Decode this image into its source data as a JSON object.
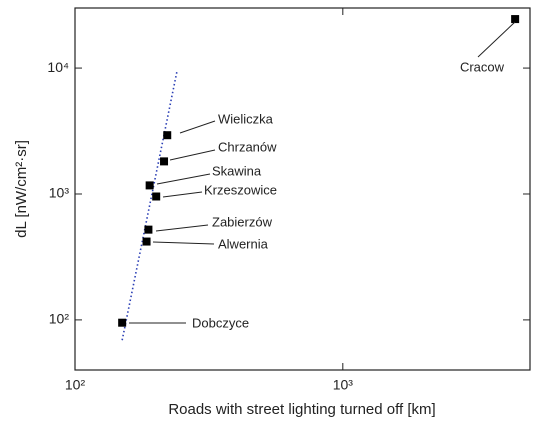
{
  "chart_data": {
    "type": "scatter",
    "x_label": "Roads with street lighting turned off [km]",
    "y_label": "dL [nW/cm²·sr]",
    "x_scale": "log",
    "y_scale": "log",
    "xlim": [
      100,
      5000
    ],
    "ylim": [
      40,
      30000
    ],
    "xticks": [
      {
        "value": 100,
        "label": "10²"
      },
      {
        "value": 1000,
        "label": "10³"
      }
    ],
    "yticks": [
      {
        "value": 100,
        "label": "10²"
      },
      {
        "value": 1000,
        "label": "10³"
      },
      {
        "value": 10000,
        "label": "10⁴"
      }
    ],
    "labels": [
      "Cracow",
      "Wieliczka",
      "Chrzanów",
      "Skawina",
      "Krzeszowice",
      "Zabierzów",
      "Alwernia",
      "Dobczyce"
    ],
    "x": [
      4400,
      221,
      215,
      190,
      201,
      188,
      185,
      150
    ],
    "y": [
      24500,
      2930,
      1815,
      1170,
      955,
      521,
      419,
      95
    ],
    "color": "#000000",
    "trend_line": {
      "x": [
        150,
        240
      ],
      "y": [
        69,
        9300
      ],
      "color": "#2b3fb5"
    }
  }
}
